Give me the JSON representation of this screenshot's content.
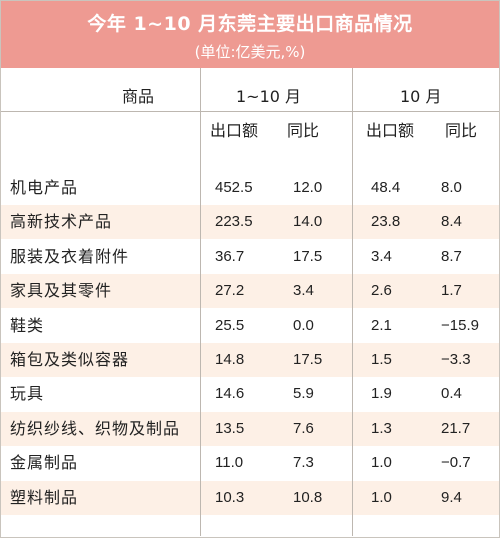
{
  "title": "今年 1~10 月东莞主要出口商品情况",
  "unit": "(单位:亿美元,%)",
  "headers": {
    "product": "商品",
    "period1": "1~10 月",
    "period2": "10 月",
    "export_value": "出口额",
    "yoy": "同比"
  },
  "rows": [
    {
      "name": "机电产品",
      "ytd_value": "452.5",
      "ytd_yoy": "12.0",
      "oct_value": "48.4",
      "oct_yoy": "8.0"
    },
    {
      "name": "高新技术产品",
      "ytd_value": "223.5",
      "ytd_yoy": "14.0",
      "oct_value": "23.8",
      "oct_yoy": "8.4"
    },
    {
      "name": "服装及衣着附件",
      "ytd_value": "36.7",
      "ytd_yoy": "17.5",
      "oct_value": "3.4",
      "oct_yoy": "8.7"
    },
    {
      "name": "家具及其零件",
      "ytd_value": "27.2",
      "ytd_yoy": "3.4",
      "oct_value": "2.6",
      "oct_yoy": "1.7"
    },
    {
      "name": "鞋类",
      "ytd_value": "25.5",
      "ytd_yoy": "0.0",
      "oct_value": "2.1",
      "oct_yoy": "−15.9"
    },
    {
      "name": "箱包及类似容器",
      "ytd_value": "14.8",
      "ytd_yoy": "17.5",
      "oct_value": "1.5",
      "oct_yoy": "−3.3"
    },
    {
      "name": "玩具",
      "ytd_value": "14.6",
      "ytd_yoy": "5.9",
      "oct_value": "1.9",
      "oct_yoy": "0.4"
    },
    {
      "name": "纺织纱线、织物及制品",
      "ytd_value": "13.5",
      "ytd_yoy": "7.6",
      "oct_value": "1.3",
      "oct_yoy": "21.7"
    },
    {
      "name": "金属制品",
      "ytd_value": "11.0",
      "ytd_yoy": "7.3",
      "oct_value": "1.0",
      "oct_yoy": "−0.7"
    },
    {
      "name": "塑料制品",
      "ytd_value": "10.3",
      "ytd_yoy": "10.8",
      "oct_value": "1.0",
      "oct_yoy": "9.4"
    }
  ]
}
